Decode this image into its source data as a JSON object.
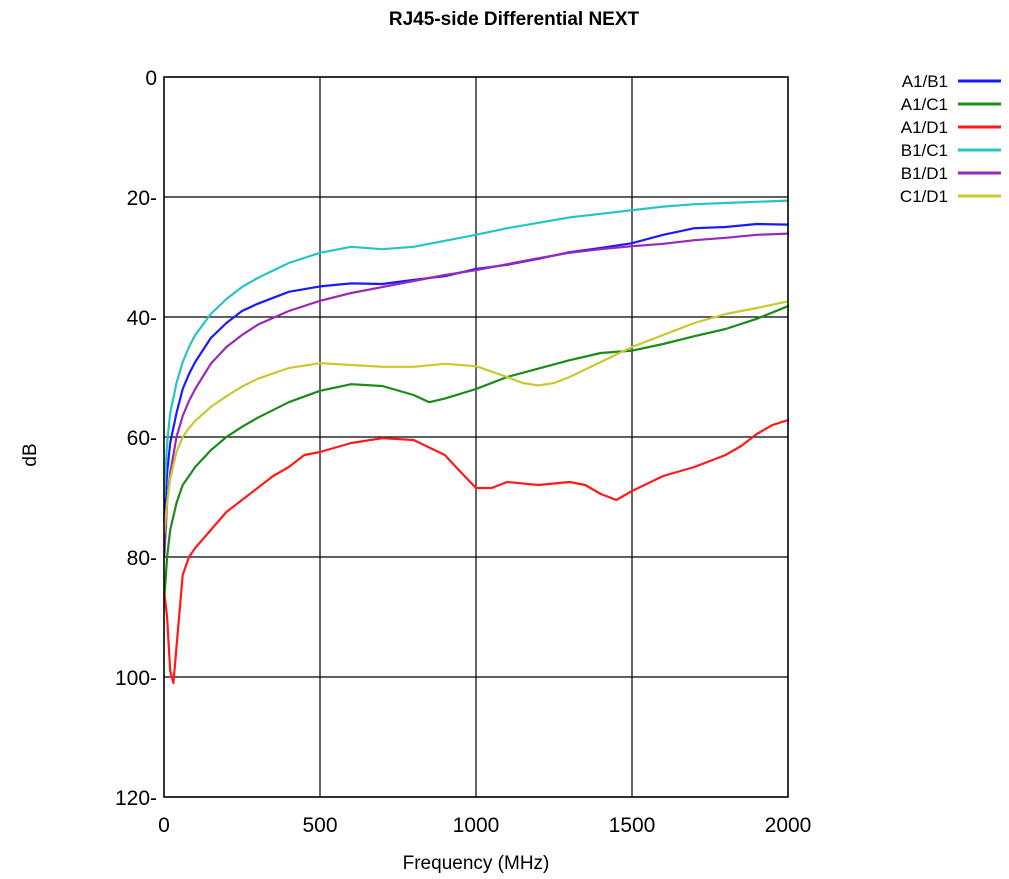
{
  "chart_data": {
    "type": "line",
    "title": "RJ45-side Differential NEXT",
    "xlabel": "Frequency (MHz)",
    "ylabel": "dB",
    "xlim": [
      0,
      2000
    ],
    "ylim": [
      0,
      120
    ],
    "y_inverted": true,
    "grid": true,
    "legend_position": "top-right",
    "x_ticks": [
      0,
      500,
      1000,
      1500,
      2000
    ],
    "y_ticks": [
      0,
      20,
      40,
      60,
      80,
      100,
      120
    ],
    "x_tick_labels": [
      "0",
      "500",
      "1000",
      "1500",
      "2000"
    ],
    "y_tick_labels": [
      "0",
      "20-",
      "40-",
      "60-",
      "80-",
      "100-",
      "120-"
    ],
    "series": [
      {
        "name": "A1/B1",
        "color": "#1a1aff",
        "x": [
          1,
          10,
          20,
          40,
          60,
          80,
          100,
          150,
          200,
          250,
          300,
          400,
          500,
          600,
          700,
          800,
          900,
          1000,
          1100,
          1200,
          1300,
          1400,
          1500,
          1600,
          1700,
          1800,
          1900,
          2000
        ],
        "y": [
          74,
          66,
          61,
          56,
          52,
          49.5,
          47.5,
          43.5,
          41,
          39,
          37.8,
          35.8,
          34.9,
          34.4,
          34.5,
          33.8,
          33.2,
          32,
          31.3,
          30.3,
          29.2,
          28.5,
          27.7,
          26.3,
          25.2,
          25,
          24.5,
          24.6
        ]
      },
      {
        "name": "A1/C1",
        "color": "#1a8a1a",
        "x": [
          1,
          10,
          20,
          40,
          60,
          80,
          100,
          150,
          200,
          250,
          300,
          400,
          500,
          600,
          700,
          800,
          850,
          900,
          1000,
          1100,
          1200,
          1300,
          1400,
          1500,
          1600,
          1700,
          1800,
          1900,
          2000
        ],
        "y": [
          87,
          80,
          75.5,
          71,
          68,
          66.5,
          65,
          62.2,
          60,
          58.3,
          56.8,
          54.2,
          52.3,
          51.2,
          51.5,
          53,
          54.2,
          53.6,
          52,
          50,
          48.6,
          47.2,
          46,
          45.6,
          44.5,
          43.2,
          42,
          40.3,
          38.2
        ]
      },
      {
        "name": "A1/D1",
        "color": "#ff1a1a",
        "x": [
          1,
          10,
          20,
          30,
          40,
          60,
          80,
          100,
          150,
          200,
          250,
          300,
          350,
          400,
          450,
          500,
          600,
          700,
          800,
          900,
          950,
          1000,
          1050,
          1100,
          1200,
          1300,
          1350,
          1400,
          1450,
          1500,
          1600,
          1700,
          1800,
          1850,
          1900,
          1950,
          2000
        ],
        "y": [
          86,
          90,
          99,
          101,
          95,
          83,
          80,
          78.5,
          75.5,
          72.5,
          70.5,
          68.5,
          66.5,
          65,
          63,
          62.5,
          61,
          60.2,
          60.5,
          63,
          65.8,
          68.5,
          68.5,
          67.5,
          68,
          67.5,
          68,
          69.5,
          70.5,
          69,
          66.5,
          65,
          63,
          61.5,
          59.5,
          58,
          57.2
        ]
      },
      {
        "name": "B1/C1",
        "color": "#26c4c4",
        "x": [
          1,
          10,
          20,
          40,
          60,
          80,
          100,
          150,
          200,
          250,
          300,
          400,
          500,
          550,
          600,
          700,
          800,
          900,
          1000,
          1100,
          1200,
          1300,
          1400,
          1500,
          1600,
          1700,
          1800,
          1900,
          2000
        ],
        "y": [
          70,
          61,
          56,
          51,
          47.5,
          45,
          43,
          39.5,
          37,
          35,
          33.5,
          31,
          29.3,
          28.8,
          28.3,
          28.7,
          28.3,
          27.3,
          26.3,
          25.2,
          24.3,
          23.4,
          22.8,
          22.2,
          21.6,
          21.2,
          21,
          20.8,
          20.6
        ]
      },
      {
        "name": "B1/D1",
        "color": "#9a2ab5",
        "x": [
          1,
          10,
          20,
          40,
          60,
          80,
          100,
          150,
          200,
          250,
          300,
          400,
          500,
          600,
          700,
          800,
          900,
          1000,
          1100,
          1200,
          1300,
          1400,
          1500,
          1600,
          1700,
          1800,
          1900,
          2000
        ],
        "y": [
          80,
          71,
          66,
          60,
          56.5,
          54,
          52,
          47.8,
          45,
          43,
          41.3,
          39,
          37.3,
          36,
          35,
          34,
          33,
          32.2,
          31.2,
          30.2,
          29.3,
          28.7,
          28.2,
          27.8,
          27.2,
          26.8,
          26.3,
          26.1
        ]
      },
      {
        "name": "C1/D1",
        "color": "#c8c832",
        "x": [
          1,
          10,
          20,
          40,
          60,
          80,
          100,
          150,
          200,
          250,
          300,
          400,
          500,
          600,
          700,
          800,
          900,
          1000,
          1100,
          1150,
          1200,
          1250,
          1300,
          1400,
          1500,
          1600,
          1700,
          1800,
          1900,
          2000
        ],
        "y": [
          76,
          71,
          67,
          62.5,
          60,
          58.5,
          57.3,
          55,
          53.2,
          51.6,
          50.3,
          48.5,
          47.7,
          48,
          48.3,
          48.3,
          47.8,
          48.2,
          50,
          51,
          51.4,
          51,
          50,
          47.5,
          45,
          43,
          41,
          39.5,
          38.5,
          37.4
        ]
      }
    ]
  }
}
